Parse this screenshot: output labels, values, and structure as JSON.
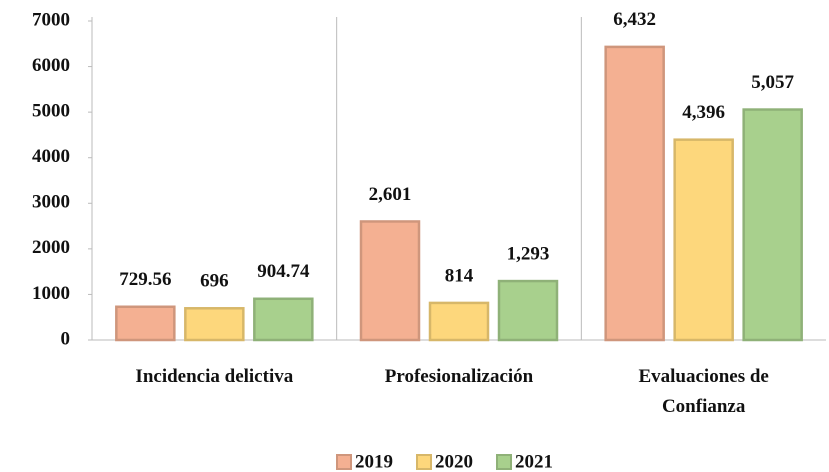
{
  "chart_data": {
    "type": "bar",
    "categories": [
      "Incidencia delictiva",
      "Profesionalización",
      "Evaluaciones de Confianza"
    ],
    "series": [
      {
        "name": "2019",
        "color": "#f4b092",
        "values": [
          729.56,
          2601,
          6432
        ],
        "value_labels": [
          "729.56",
          "2,601",
          "6,432"
        ]
      },
      {
        "name": "2020",
        "color": "#fdd77c",
        "values": [
          696,
          814,
          4396
        ],
        "value_labels": [
          "696",
          "814",
          "4,396"
        ]
      },
      {
        "name": "2021",
        "color": "#a8d08d",
        "values": [
          904.74,
          1293,
          5057
        ],
        "value_labels": [
          "904.74",
          "1,293",
          "5,057"
        ]
      }
    ],
    "ylim": [
      0,
      7000
    ],
    "yticks": [
      0,
      1000,
      2000,
      3000,
      4000,
      5000,
      6000,
      7000
    ],
    "grid": false,
    "legend": "bottom"
  }
}
